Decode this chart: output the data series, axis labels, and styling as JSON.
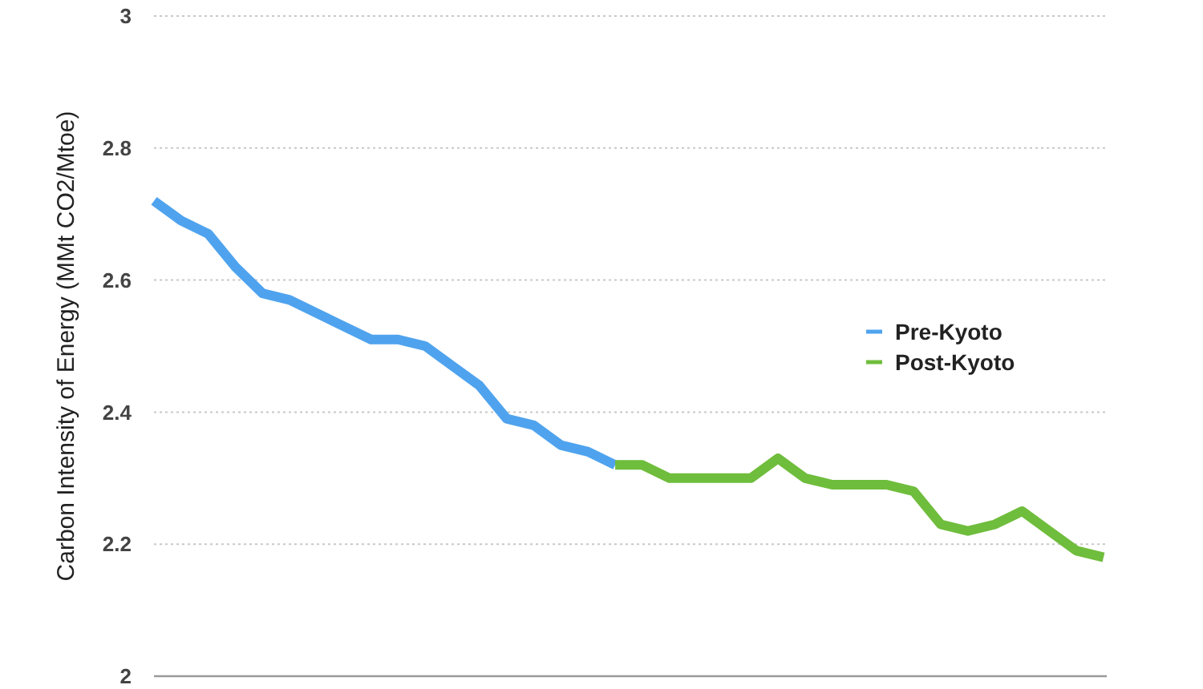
{
  "chart_data": {
    "type": "line",
    "ylabel": "Carbon Intensity of Energy (MMt CO2/Mtoe)",
    "categories": [
      null,
      null,
      null,
      null,
      null,
      null,
      null,
      null,
      null,
      null,
      null,
      null,
      null,
      null,
      null,
      null,
      null,
      null,
      null,
      null,
      null,
      null,
      null,
      null,
      null,
      null,
      null,
      null,
      null,
      null,
      null,
      null,
      null,
      null,
      null,
      null
    ],
    "series": [
      {
        "name": "Pre-Kyoto",
        "color": "#4fa3ee",
        "values": [
          2.72,
          2.69,
          2.67,
          2.62,
          2.58,
          2.57,
          2.55,
          2.53,
          2.51,
          2.51,
          2.5,
          2.47,
          2.44,
          2.39,
          2.38,
          2.35,
          2.34,
          2.32,
          null,
          null,
          null,
          null,
          null,
          null,
          null,
          null,
          null,
          null,
          null,
          null,
          null,
          null,
          null,
          null,
          null,
          null
        ]
      },
      {
        "name": "Post-Kyoto",
        "color": "#6fbd3c",
        "values": [
          null,
          null,
          null,
          null,
          null,
          null,
          null,
          null,
          null,
          null,
          null,
          null,
          null,
          null,
          null,
          null,
          null,
          2.32,
          2.32,
          2.3,
          2.3,
          2.3,
          2.3,
          2.33,
          2.3,
          2.29,
          2.29,
          2.29,
          2.28,
          2.23,
          2.22,
          2.23,
          2.25,
          2.22,
          2.19,
          2.18
        ]
      }
    ],
    "ylim": [
      2,
      3
    ],
    "yticks": [
      2,
      2.2,
      2.4,
      2.6,
      2.8,
      3
    ],
    "grid": "y",
    "legend": "right",
    "tick_labels": "y"
  }
}
